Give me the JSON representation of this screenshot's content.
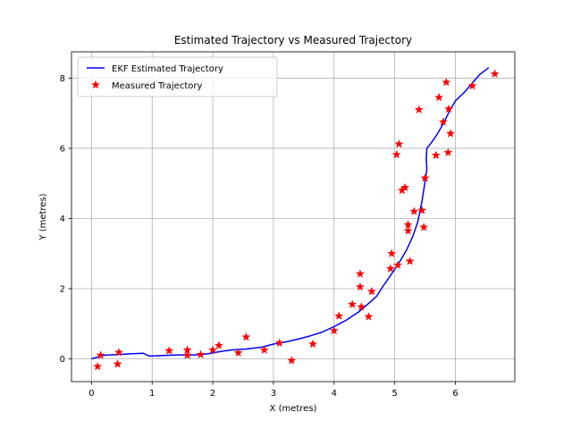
{
  "chart_data": {
    "type": "line",
    "title": "Estimated Trajectory vs Measured Trajectory",
    "xlabel": "X (metres)",
    "ylabel": "Y (metres)",
    "xlim": [
      -0.33,
      6.98
    ],
    "ylim": [
      -0.65,
      8.75
    ],
    "xticks": [
      0,
      1,
      2,
      3,
      4,
      5,
      6
    ],
    "yticks": [
      0,
      2,
      4,
      6,
      8
    ],
    "grid": true,
    "legend_position": "top-left",
    "colors": {
      "estimated": "#0000ff",
      "measured": "#ff0000",
      "grid": "#b0b0b0",
      "axes": "#000000"
    },
    "series": [
      {
        "name": "EKF Estimated Trajectory",
        "kind": "line",
        "points": [
          [
            0.0,
            0.0
          ],
          [
            0.2,
            0.1
          ],
          [
            0.4,
            0.12
          ],
          [
            0.6,
            0.14
          ],
          [
            0.85,
            0.16
          ],
          [
            0.95,
            0.08
          ],
          [
            1.1,
            0.09
          ],
          [
            1.4,
            0.11
          ],
          [
            1.7,
            0.11
          ],
          [
            1.9,
            0.14
          ],
          [
            2.1,
            0.2
          ],
          [
            2.3,
            0.25
          ],
          [
            2.55,
            0.28
          ],
          [
            2.8,
            0.33
          ],
          [
            3.0,
            0.42
          ],
          [
            3.2,
            0.48
          ],
          [
            3.4,
            0.56
          ],
          [
            3.6,
            0.65
          ],
          [
            3.8,
            0.76
          ],
          [
            4.0,
            0.92
          ],
          [
            4.2,
            1.1
          ],
          [
            4.4,
            1.33
          ],
          [
            4.55,
            1.55
          ],
          [
            4.7,
            1.78
          ],
          [
            4.8,
            2.05
          ],
          [
            4.9,
            2.3
          ],
          [
            5.0,
            2.55
          ],
          [
            5.1,
            2.82
          ],
          [
            5.2,
            3.12
          ],
          [
            5.3,
            3.5
          ],
          [
            5.38,
            3.9
          ],
          [
            5.45,
            4.5
          ],
          [
            5.5,
            5.05
          ],
          [
            5.53,
            5.4
          ],
          [
            5.52,
            5.7
          ],
          [
            5.53,
            6.0
          ],
          [
            5.6,
            6.15
          ],
          [
            5.7,
            6.4
          ],
          [
            5.8,
            6.7
          ],
          [
            5.9,
            7.05
          ],
          [
            6.0,
            7.35
          ],
          [
            6.15,
            7.6
          ],
          [
            6.3,
            7.9
          ],
          [
            6.4,
            8.1
          ],
          [
            6.55,
            8.3
          ]
        ]
      },
      {
        "name": "Measured Trajectory",
        "kind": "scatter",
        "marker": "star",
        "points": [
          [
            0.1,
            -0.22
          ],
          [
            0.15,
            0.1
          ],
          [
            0.43,
            -0.15
          ],
          [
            0.45,
            0.18
          ],
          [
            1.28,
            0.23
          ],
          [
            1.58,
            0.25
          ],
          [
            1.58,
            0.1
          ],
          [
            1.8,
            0.12
          ],
          [
            2.0,
            0.25
          ],
          [
            2.1,
            0.38
          ],
          [
            2.42,
            0.17
          ],
          [
            2.55,
            0.62
          ],
          [
            2.85,
            0.25
          ],
          [
            3.1,
            0.45
          ],
          [
            3.3,
            -0.05
          ],
          [
            3.65,
            0.42
          ],
          [
            4.0,
            0.8
          ],
          [
            4.08,
            1.22
          ],
          [
            4.3,
            1.55
          ],
          [
            4.43,
            2.42
          ],
          [
            4.43,
            2.05
          ],
          [
            4.45,
            1.48
          ],
          [
            4.57,
            1.2
          ],
          [
            4.62,
            1.92
          ],
          [
            4.93,
            2.57
          ],
          [
            4.95,
            3.0
          ],
          [
            5.03,
            5.82
          ],
          [
            5.05,
            2.67
          ],
          [
            5.07,
            6.12
          ],
          [
            5.12,
            4.8
          ],
          [
            5.17,
            4.88
          ],
          [
            5.22,
            3.82
          ],
          [
            5.22,
            3.65
          ],
          [
            5.25,
            2.78
          ],
          [
            5.32,
            4.2
          ],
          [
            5.4,
            7.1
          ],
          [
            5.45,
            4.23
          ],
          [
            5.48,
            3.75
          ],
          [
            5.5,
            5.15
          ],
          [
            5.68,
            5.8
          ],
          [
            5.73,
            7.45
          ],
          [
            5.8,
            6.75
          ],
          [
            5.85,
            7.88
          ],
          [
            5.88,
            5.88
          ],
          [
            5.89,
            7.12
          ],
          [
            5.92,
            6.42
          ],
          [
            6.28,
            7.78
          ],
          [
            6.65,
            8.12
          ]
        ]
      }
    ]
  }
}
